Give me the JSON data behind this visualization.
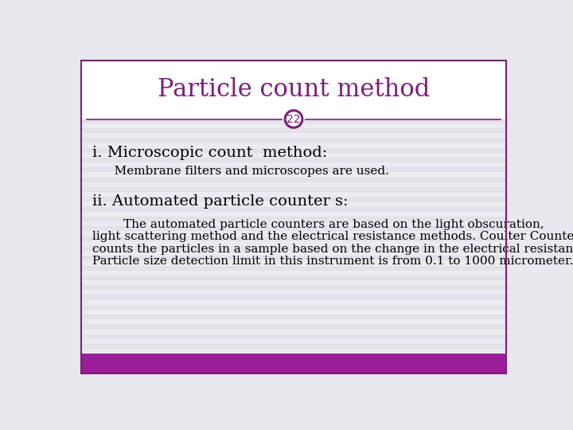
{
  "title": "Particle count method",
  "title_color": "#7B1F7A",
  "slide_number": "22",
  "slide_number_color": "#7B1F7A",
  "outer_bg": "#E8E8EE",
  "content_bg": "#F0F0F5",
  "header_bg": "#FFFFFF",
  "stripe_color1": "#EBEBF0",
  "stripe_color2": "#E2E2EA",
  "footer_color": "#9B1F9B",
  "border_color": "#7B1F7A",
  "divider_color": "#7B1F7A",
  "heading1": "i. Microscopic count  method:",
  "text1": "   Membrane filters and microscopes are used.",
  "heading2": "ii. Automated particle counter s:",
  "text2_line1": "        The automated particle counters are based on the light obscuration,",
  "text2_line2": "light scattering method and the electrical resistance methods. Coulter Counter",
  "text2_line3": "counts the particles in a sample based on the change in the electrical resistance.",
  "text2_line4": "Particle size detection limit in this instrument is from 0.1 to 1000 micrometer.",
  "title_fontsize": 22,
  "heading_fontsize": 14,
  "body_fontsize": 11,
  "number_fontsize": 10
}
